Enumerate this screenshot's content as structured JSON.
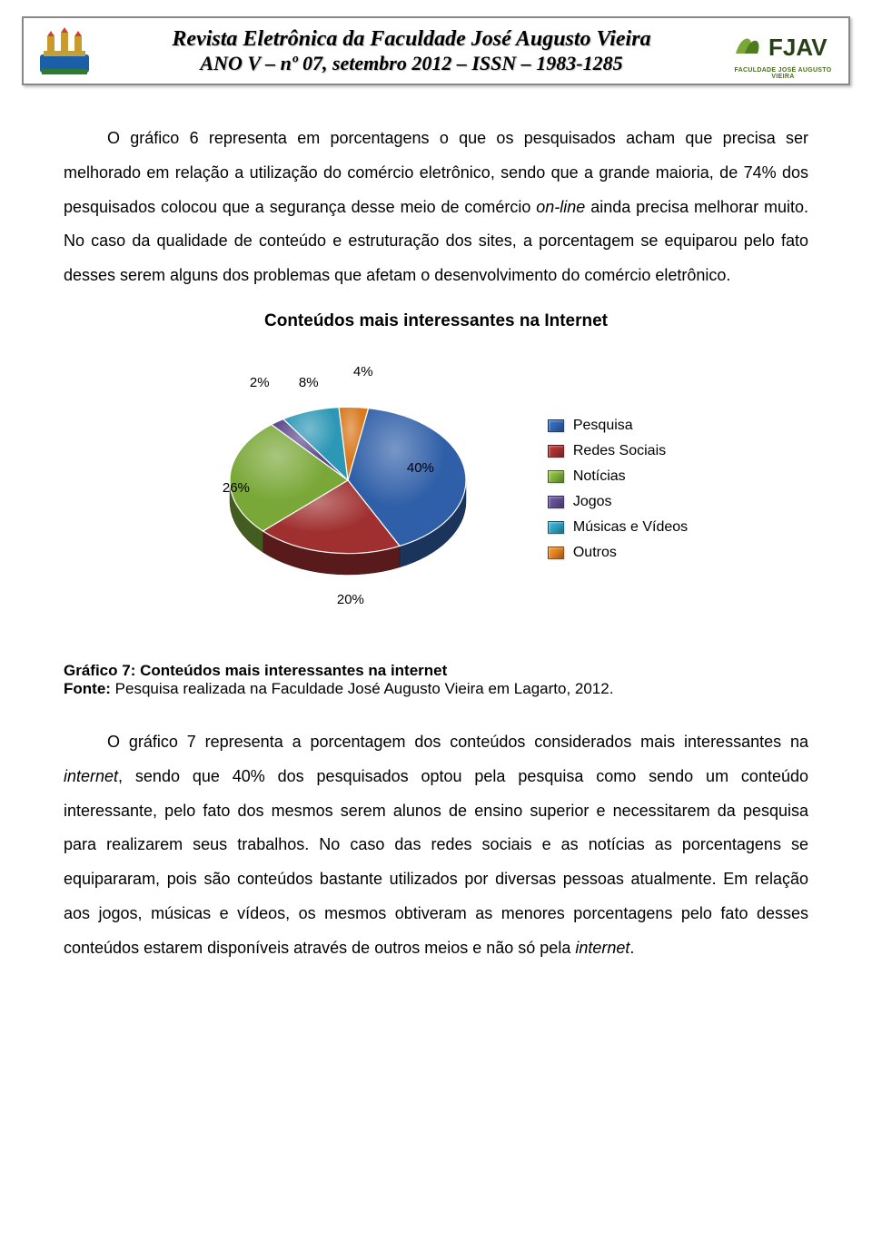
{
  "header": {
    "line1": "Revista Eletrônica da Faculdade José Augusto Vieira",
    "line2": "ANO V – nº 07, setembro 2012 – ISSN – 1983-1285",
    "logo_text": "FJAV",
    "logo_sub": "FACULDADE JOSÉ AUGUSTO VIEIRA"
  },
  "para1": "O gráfico 6 representa em porcentagens o que os pesquisados acham que precisa ser melhorado em relação a utilização do comércio eletrônico, sendo que a grande maioria, de 74% dos pesquisados colocou que a segurança  desse meio de comércio ",
  "para1_italic": "on-line",
  "para1_cont": " ainda precisa melhorar muito. No caso da qualidade de conteúdo e estruturação dos sites, a porcentagem se equiparou pelo fato desses serem alguns dos problemas que afetam o desenvolvimento do comércio eletrônico.",
  "chart": {
    "title": "Conteúdos mais interessantes na Internet",
    "type": "pie",
    "slices": [
      {
        "label": "Pesquisa",
        "value": 40,
        "color": "#2f5fa8",
        "pct_text": "40%"
      },
      {
        "label": "Redes Sociais",
        "value": 20,
        "color": "#a02f2f",
        "pct_text": "20%"
      },
      {
        "label": "Notícias",
        "value": 26,
        "color": "#7aa838",
        "pct_text": "26%"
      },
      {
        "label": "Jogos",
        "value": 2,
        "color": "#5d4a8c",
        "pct_text": "2%"
      },
      {
        "label": "Músicas e Vídeos",
        "value": 8,
        "color": "#2d98b6",
        "pct_text": "8%"
      },
      {
        "label": "Outros",
        "value": 4,
        "color": "#d97a1f",
        "pct_text": "4%"
      }
    ],
    "start_angle_deg": -80,
    "radius": 130,
    "thickness_ratio": 0.18,
    "background": "#ffffff",
    "label_fontsize": 15,
    "legend_fontsize": 16,
    "title_fontsize": 19
  },
  "caption": {
    "bold": "Gráfico 7: Conteúdos mais interessantes na internet",
    "line2_prefix": "Fonte: ",
    "line2_rest": "Pesquisa realizada na Faculdade José Augusto Vieira em Lagarto, 2012."
  },
  "para2_a": "O  gráfico  7  representa  a  porcentagem  dos  conteúdos  considerados  mais interessantes na ",
  "para2_italic": "internet",
  "para2_b": ", sendo que 40% dos pesquisados optou pela pesquisa como sendo um conteúdo interessante, pelo fato dos mesmos serem alunos de ensino superior e necessitarem da pesquisa para realizarem seus trabalhos. No caso das redes sociais e as notícias as porcentagens se equipararam, pois são conteúdos bastante utilizados por diversas pessoas atualmente. Em relação aos jogos, músicas e vídeos, os mesmos obtiveram as menores porcentagens pelo fato desses conteúdos estarem disponíveis através de outros meios e não só pela ",
  "para2_italic2": "internet",
  "para2_c": "."
}
